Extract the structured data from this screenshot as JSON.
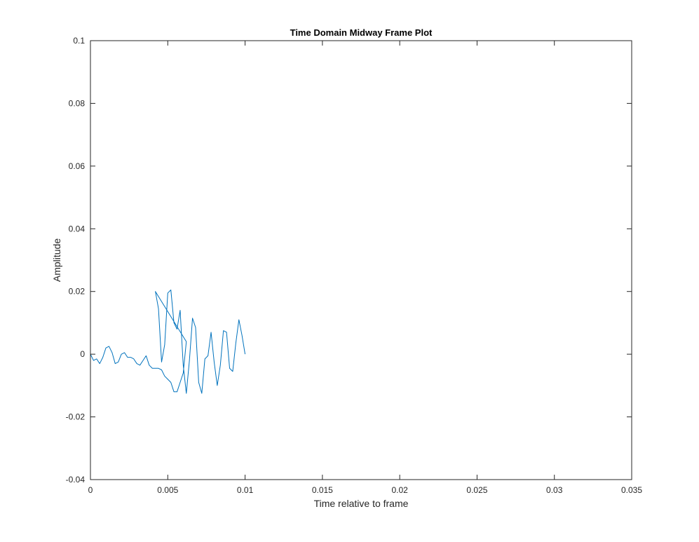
{
  "chart_data": {
    "type": "line",
    "title": "Time Domain Midway Frame Plot",
    "xlabel": "Time relative to frame",
    "ylabel": "Amplitude",
    "xlim": [
      0,
      0.035
    ],
    "ylim": [
      -0.04,
      0.1
    ],
    "xticks": [
      0,
      0.005,
      0.01,
      0.015,
      0.02,
      0.025,
      0.03,
      0.035
    ],
    "xtick_labels": [
      "0",
      "0.005",
      "0.01",
      "0.015",
      "0.02",
      "0.025",
      "0.03",
      "0.035"
    ],
    "yticks": [
      -0.04,
      -0.02,
      0,
      0.02,
      0.04,
      0.06,
      0.08,
      0.1
    ],
    "ytick_labels": [
      "-0.04",
      "-0.02",
      "0",
      "0.02",
      "0.04",
      "0.06",
      "0.08",
      "0.1"
    ],
    "grid": false,
    "series": [
      {
        "color": "#0072BD",
        "points": [
          [
            0.0,
            0.0
          ],
          [
            0.0002,
            -0.002
          ],
          [
            0.0004,
            -0.0015
          ],
          [
            0.0006,
            -0.003
          ],
          [
            0.0008,
            -0.001
          ],
          [
            0.001,
            0.002
          ],
          [
            0.0012,
            0.0025
          ],
          [
            0.0014,
            0.0005
          ],
          [
            0.0016,
            -0.003
          ],
          [
            0.0018,
            -0.0025
          ],
          [
            0.002,
            0.0
          ],
          [
            0.0022,
            0.0005
          ],
          [
            0.0024,
            -0.001
          ],
          [
            0.0026,
            -0.001
          ],
          [
            0.0028,
            -0.0015
          ],
          [
            0.003,
            -0.003
          ],
          [
            0.0032,
            -0.0035
          ],
          [
            0.0034,
            -0.002
          ],
          [
            0.0036,
            -0.0005
          ],
          [
            0.0038,
            -0.0035
          ],
          [
            0.004,
            -0.0045
          ],
          [
            0.0042,
            -0.0045
          ],
          [
            0.0044,
            -0.0045
          ],
          [
            0.0046,
            -0.005
          ],
          [
            0.0048,
            -0.007
          ],
          [
            0.005,
            -0.008
          ],
          [
            0.0052,
            -0.009
          ],
          [
            0.0054,
            -0.012
          ],
          [
            0.0056,
            -0.012
          ],
          [
            0.0058,
            -0.009
          ],
          [
            0.006,
            -0.006
          ],
          [
            0.0062,
            0.004
          ],
          [
            0.0042,
            0.02
          ],
          [
            0.0044,
            0.0145
          ],
          [
            0.0046,
            -0.0025
          ],
          [
            0.0048,
            0.003
          ],
          [
            0.005,
            0.0195
          ],
          [
            0.0052,
            0.0205
          ],
          [
            0.0054,
            0.01
          ],
          [
            0.0056,
            0.008
          ],
          [
            0.0058,
            0.014
          ],
          [
            0.006,
            -0.0035
          ],
          [
            0.0062,
            -0.0125
          ],
          [
            0.0064,
            -0.002
          ],
          [
            0.0066,
            0.0115
          ],
          [
            0.0068,
            0.0085
          ],
          [
            0.007,
            -0.009
          ],
          [
            0.0072,
            -0.0125
          ],
          [
            0.0074,
            -0.0015
          ],
          [
            0.0076,
            -0.0005
          ],
          [
            0.0078,
            0.007
          ],
          [
            0.008,
            -0.0025
          ],
          [
            0.0082,
            -0.01
          ],
          [
            0.0084,
            -0.0035
          ],
          [
            0.0086,
            0.0075
          ],
          [
            0.0088,
            0.007
          ],
          [
            0.009,
            -0.0045
          ],
          [
            0.0092,
            -0.0055
          ],
          [
            0.0094,
            0.0035
          ],
          [
            0.0096,
            0.011
          ],
          [
            0.0098,
            0.006
          ],
          [
            0.01,
            0.0
          ]
        ]
      }
    ]
  }
}
